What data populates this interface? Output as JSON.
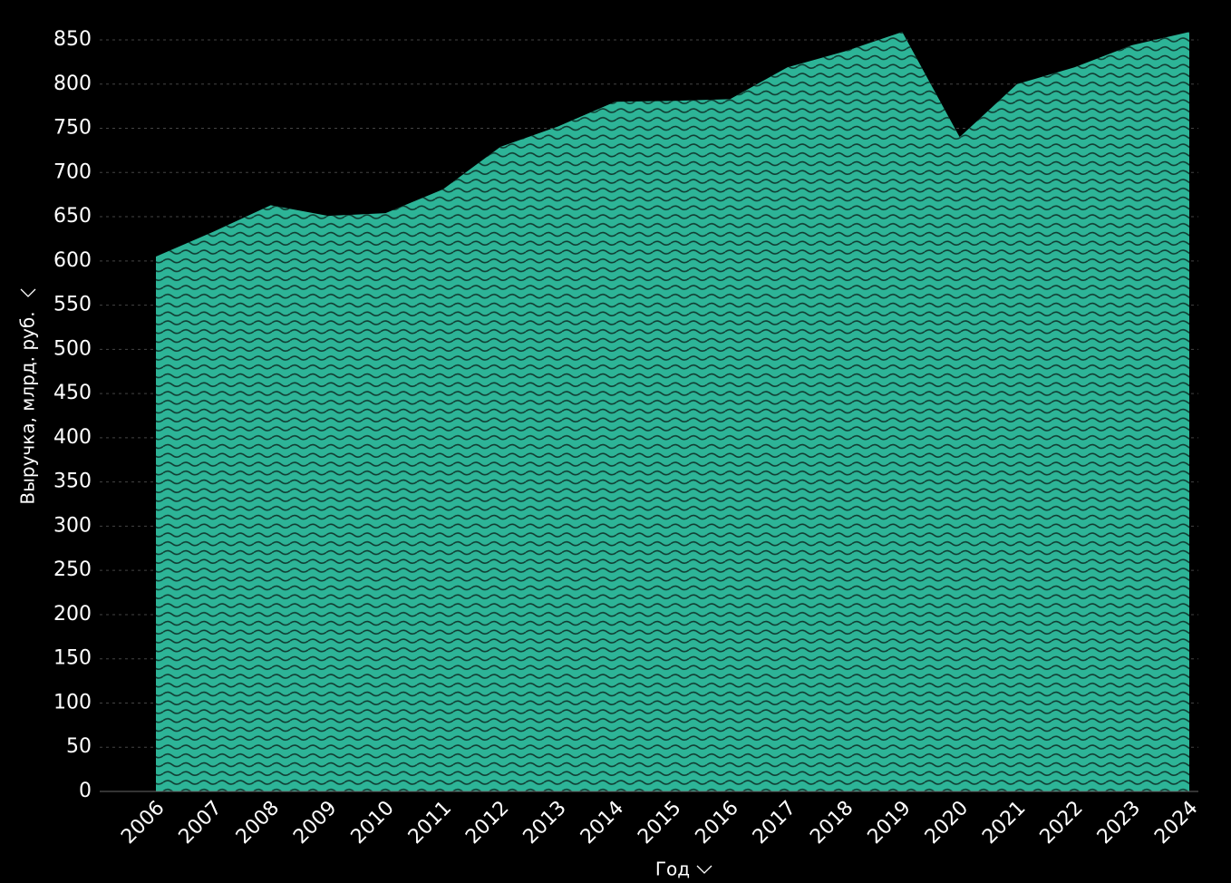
{
  "chart_data": {
    "type": "area",
    "x_label": "Год",
    "y_label": "Выручка, млрд. руб.",
    "categories": [
      "2006",
      "2007",
      "2008",
      "2009",
      "2010",
      "2011",
      "2012",
      "2013",
      "2014",
      "2015",
      "2016",
      "2017",
      "2018",
      "2019",
      "2020",
      "2021",
      "2022",
      "2023",
      "2024"
    ],
    "values": [
      605,
      633,
      663,
      651,
      654,
      681,
      729,
      752,
      780,
      781,
      783,
      819,
      837,
      859,
      740,
      800,
      819,
      844,
      859
    ],
    "color": "#2db497",
    "ylim": [
      0,
      850
    ],
    "yticks": [
      0,
      50,
      100,
      150,
      200,
      250,
      300,
      350,
      400,
      450,
      500,
      550,
      600,
      650,
      700,
      750,
      800,
      850
    ],
    "grid": true
  }
}
